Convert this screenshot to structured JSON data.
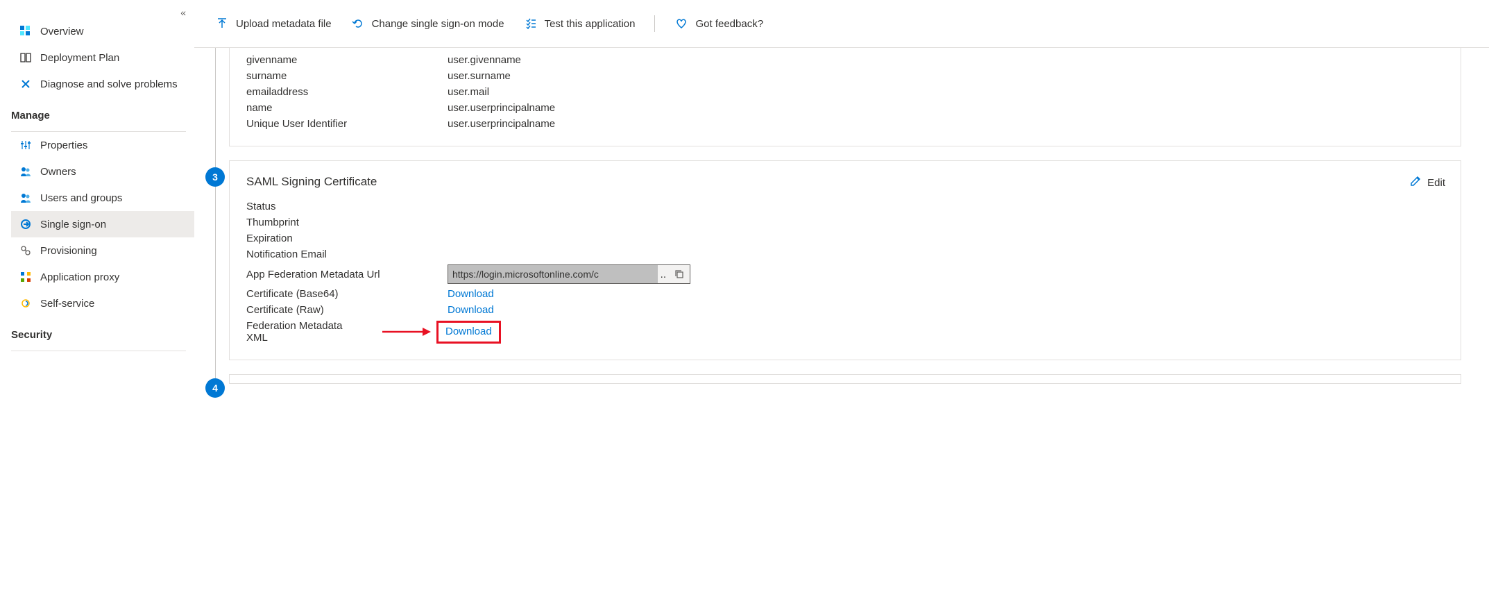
{
  "sidebar": {
    "items": {
      "overview": "Overview",
      "deployment_plan": "Deployment Plan",
      "diagnose": "Diagnose and solve problems",
      "properties": "Properties",
      "owners": "Owners",
      "users_groups": "Users and groups",
      "sso": "Single sign-on",
      "provisioning": "Provisioning",
      "app_proxy": "Application proxy",
      "self_service": "Self-service"
    },
    "sections": {
      "manage": "Manage",
      "security": "Security"
    }
  },
  "toolbar": {
    "upload": "Upload metadata file",
    "change_mode": "Change single sign-on mode",
    "test": "Test this application",
    "feedback": "Got feedback?"
  },
  "claims": [
    {
      "key": "givenname",
      "val": "user.givenname"
    },
    {
      "key": "surname",
      "val": "user.surname"
    },
    {
      "key": "emailaddress",
      "val": "user.mail"
    },
    {
      "key": "name",
      "val": "user.userprincipalname"
    },
    {
      "key": "Unique User Identifier",
      "val": "user.userprincipalname"
    }
  ],
  "cert_card": {
    "step": "3",
    "title": "SAML Signing Certificate",
    "edit": "Edit",
    "rows": {
      "status": "Status",
      "thumbprint": "Thumbprint",
      "expiration": "Expiration",
      "notif_email": "Notification Email",
      "app_fed_url_label": "App Federation Metadata Url",
      "app_fed_url_value": "https://login.microsoftonline.com/c",
      "cert_b64": "Certificate (Base64)",
      "cert_raw": "Certificate (Raw)",
      "fed_xml": "Federation Metadata XML",
      "download": "Download"
    }
  },
  "next_step": "4",
  "colors": {
    "accent": "#0078d4",
    "highlight": "#e81123"
  }
}
